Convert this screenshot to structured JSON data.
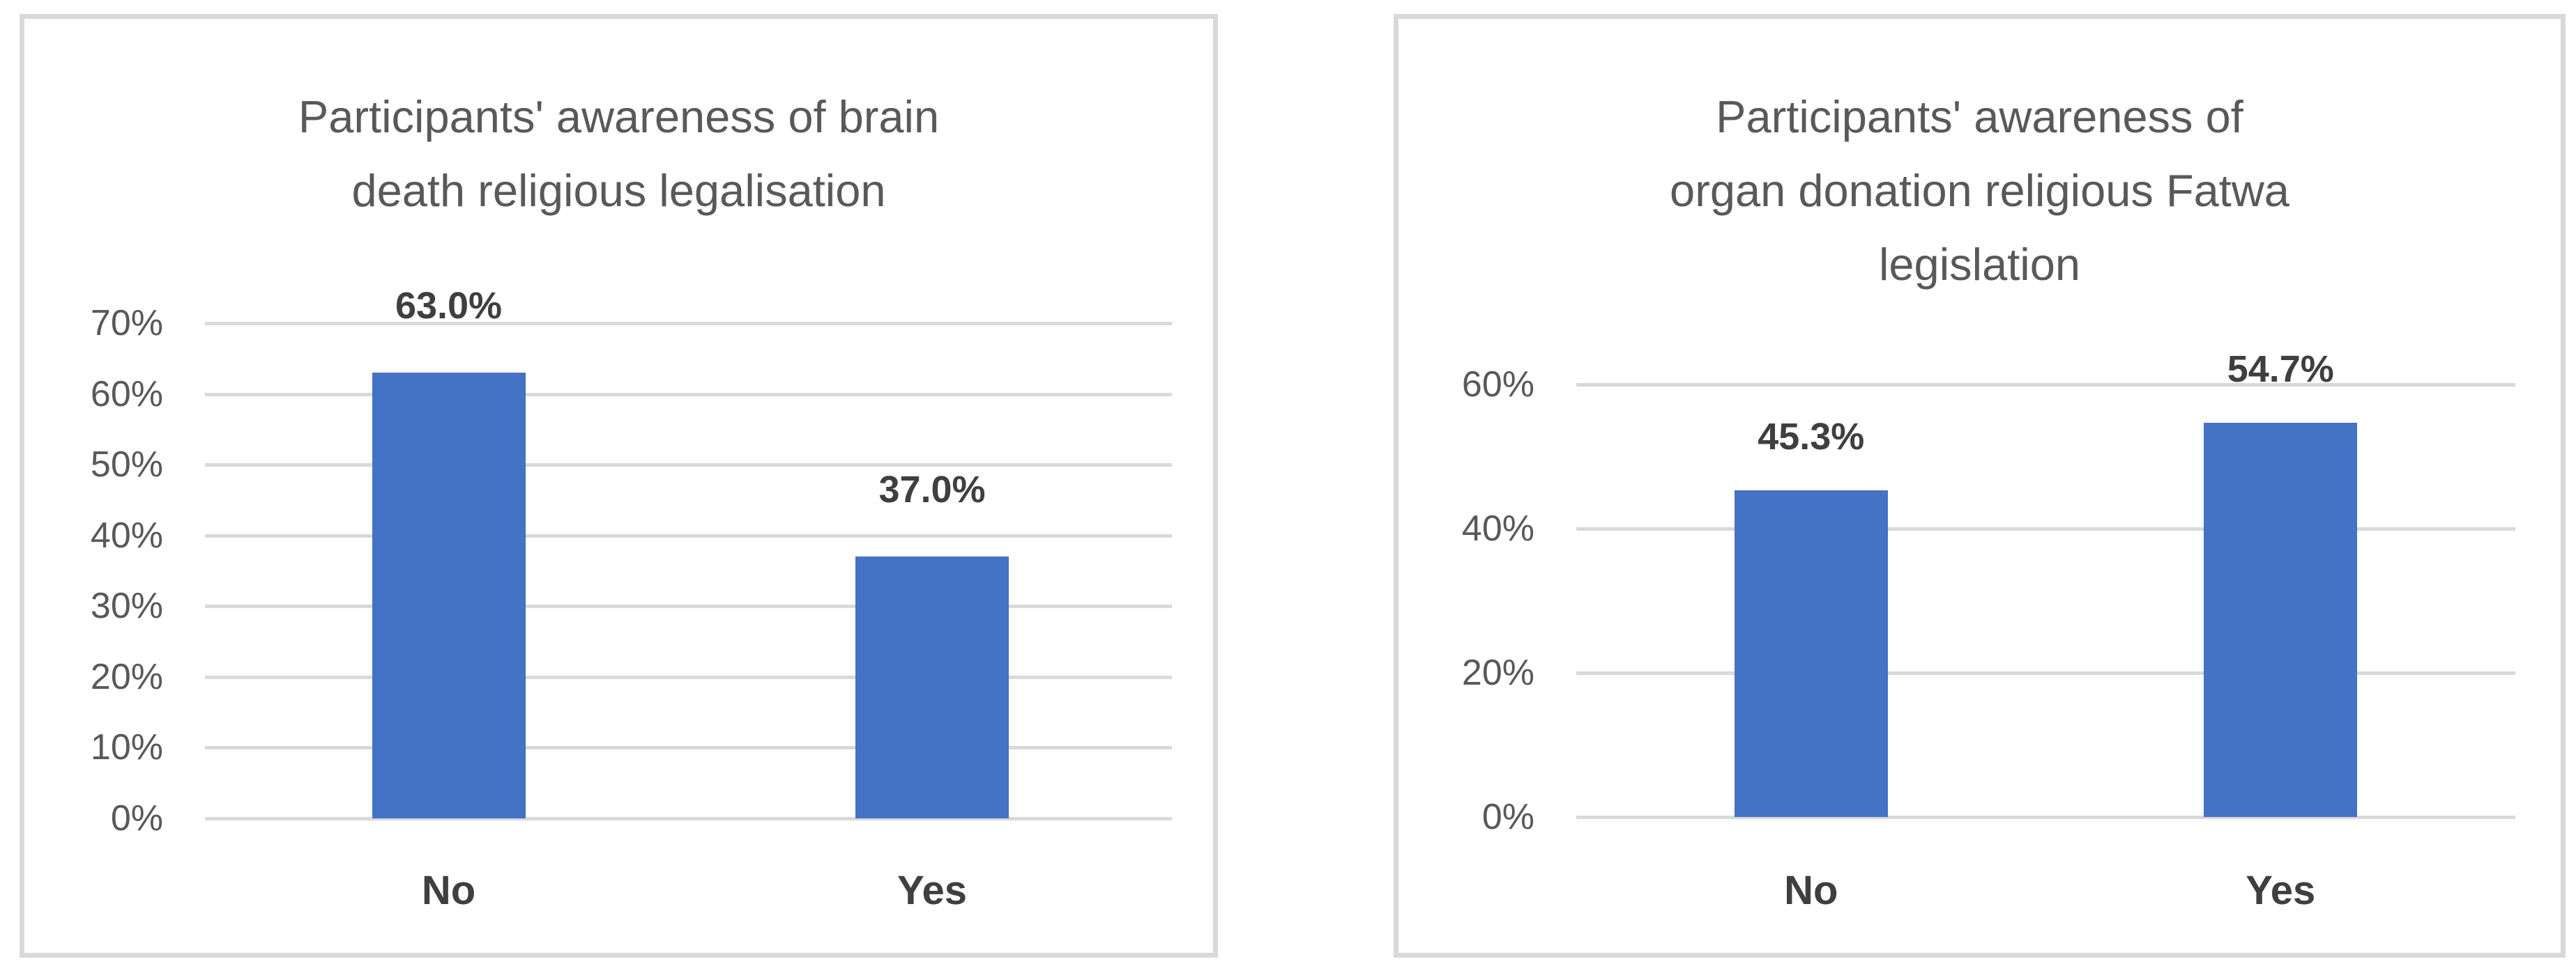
{
  "colors": {
    "background": "#FFFFFF",
    "bar_fill": "#4472C4",
    "gridline": "#D9D9D9",
    "panel_border": "#D9D9D9",
    "title_text": "#595959",
    "tick_text": "#595959",
    "data_label_text": "#3F3F3F",
    "category_text": "#3F3F3F"
  },
  "chart_data": [
    {
      "type": "bar",
      "title": "Participants' awareness of brain death religious legalisation",
      "title_lines": [
        "Participants' awareness of brain",
        "death religious legalisation"
      ],
      "categories": [
        "No",
        "Yes"
      ],
      "values": [
        63.0,
        37.0
      ],
      "data_labels": [
        "63.0%",
        "37.0%"
      ],
      "xlabel": "",
      "ylabel": "",
      "ylim": [
        0,
        70
      ],
      "ytick_interval": 10,
      "yticks": [
        "70%",
        "60%",
        "50%",
        "40%",
        "30%",
        "20%",
        "10%",
        "0%"
      ],
      "grid": true,
      "legend": "none",
      "bar_color": "#4472C4"
    },
    {
      "type": "bar",
      "title": "Participants' awareness of organ donation religious Fatwa legislation",
      "title_lines": [
        "Participants' awareness of",
        "organ donation religious Fatwa",
        "legislation"
      ],
      "categories": [
        "No",
        "Yes"
      ],
      "values": [
        45.3,
        54.7
      ],
      "data_labels": [
        "45.3%",
        "54.7%"
      ],
      "xlabel": "",
      "ylabel": "",
      "ylim": [
        0,
        60
      ],
      "ytick_interval": 20,
      "yticks": [
        "60%",
        "40%",
        "20%",
        "0%"
      ],
      "grid": true,
      "legend": "none",
      "bar_color": "#4472C4"
    }
  ]
}
